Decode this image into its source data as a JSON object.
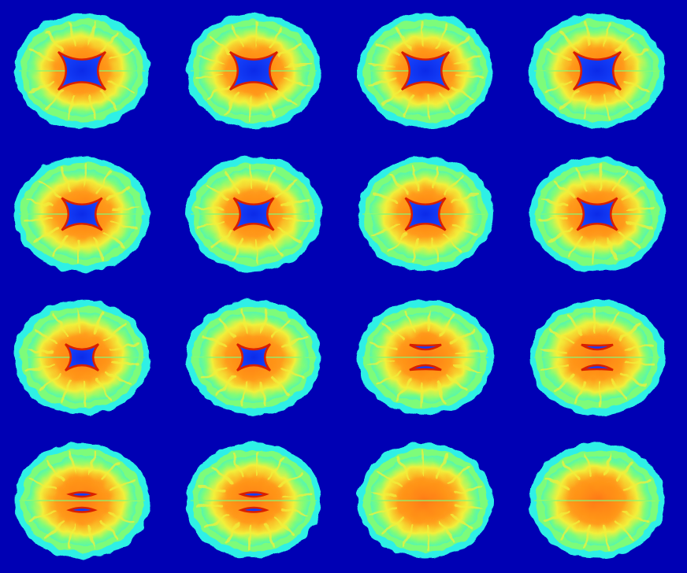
{
  "image": {
    "kind": "brain-mri-axial-slice-montage",
    "colormap": "jet",
    "background_color": "#0000b4",
    "grid": {
      "rows": 4,
      "columns": 4
    },
    "slices": [
      {
        "row": 1,
        "col": 1,
        "ventricle": "large"
      },
      {
        "row": 1,
        "col": 2,
        "ventricle": "large"
      },
      {
        "row": 1,
        "col": 3,
        "ventricle": "large"
      },
      {
        "row": 1,
        "col": 4,
        "ventricle": "large"
      },
      {
        "row": 2,
        "col": 1,
        "ventricle": "medium"
      },
      {
        "row": 2,
        "col": 2,
        "ventricle": "medium"
      },
      {
        "row": 2,
        "col": 3,
        "ventricle": "medium"
      },
      {
        "row": 2,
        "col": 4,
        "ventricle": "medium"
      },
      {
        "row": 3,
        "col": 1,
        "ventricle": "small"
      },
      {
        "row": 3,
        "col": 2,
        "ventricle": "small"
      },
      {
        "row": 3,
        "col": 3,
        "ventricle": "split"
      },
      {
        "row": 3,
        "col": 4,
        "ventricle": "split"
      },
      {
        "row": 4,
        "col": 1,
        "ventricle": "slit"
      },
      {
        "row": 4,
        "col": 2,
        "ventricle": "slit"
      },
      {
        "row": 4,
        "col": 3,
        "ventricle": "none"
      },
      {
        "row": 4,
        "col": 4,
        "ventricle": "none"
      }
    ],
    "palette": {
      "cyan": "#2ef0e6",
      "green": "#7dfc7a",
      "yellow": "#f2f03a",
      "orange": "#ff9a1a",
      "deep_orange": "#ff6a10",
      "red": "#d81e00",
      "ventricle_blue": "#0b1fe0"
    }
  }
}
